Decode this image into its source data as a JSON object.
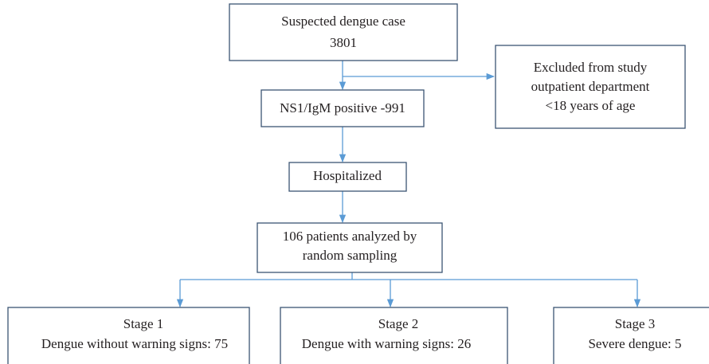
{
  "nodes": [
    {
      "lines": [
        "Suspected dengue case",
        "3801"
      ]
    },
    {
      "lines": [
        "Excluded from study",
        "outpatient department",
        "<18 years of age"
      ]
    },
    {
      "lines": [
        "NS1/IgM positive -991"
      ]
    },
    {
      "lines": [
        "Hospitalized"
      ]
    },
    {
      "lines": [
        "106 patients analyzed by",
        "random sampling"
      ]
    },
    {
      "lines": [
        "Stage 1",
        "Dengue without warning signs: 75"
      ]
    },
    {
      "lines": [
        "Stage 2",
        "Dengue with warning signs: 26"
      ]
    },
    {
      "lines": [
        "Stage 3",
        "Severe dengue: 5"
      ]
    }
  ]
}
